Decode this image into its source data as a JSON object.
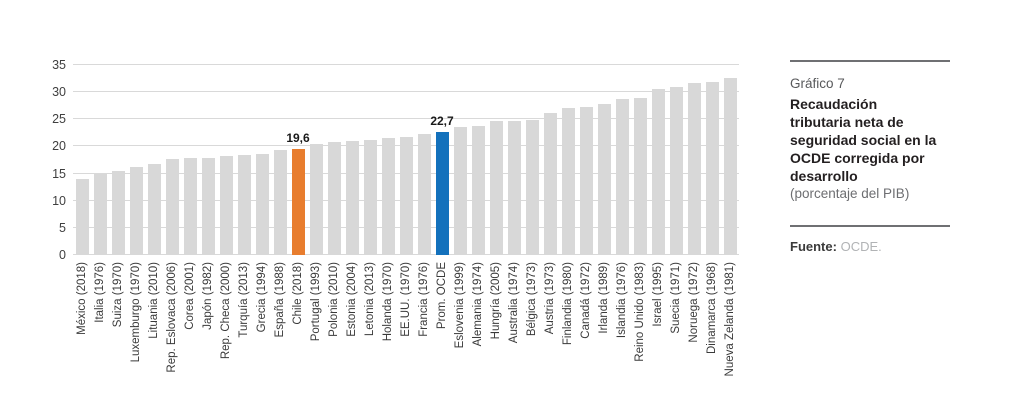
{
  "panel": {
    "kicker": "Gráfico 7",
    "title": "Recaudación\ntributaria neta de\nseguridad social en la\nOCDE corregida por\ndesarrollo",
    "subtitle": "(porcentaje del PIB)",
    "source_label": "Fuente:",
    "source_value": "OCDE."
  },
  "chart_data": {
    "type": "bar",
    "title": "Recaudación tributaria neta de seguridad social en la OCDE corregida por desarrollo",
    "xlabel": "",
    "ylabel": "porcentaje del PIB",
    "ylim": [
      0,
      35
    ],
    "yticks": [
      0,
      5,
      10,
      15,
      20,
      25,
      30,
      35
    ],
    "grid": true,
    "legend_position": "none",
    "bar_color_default": "#D8D8D8",
    "axis_text_color": "#3a3a3a",
    "gridline_color": "#d9d9d9",
    "categories": [
      "México (2018)",
      "Italia (1976)",
      "Suiza (1970)",
      "Luxemburgo (1970)",
      "Lituania (2010)",
      "Rep. Eslovaca (2006)",
      "Corea (2001)",
      "Japón (1982)",
      "Rep. Checa (2000)",
      "Turquía (2013)",
      "Grecia (1994)",
      "España (1988)",
      "Chile (2018)",
      "Portugal (1993)",
      "Polonia (2010)",
      "Estonia (2004)",
      "Letonia (2013)",
      "Holanda (1970)",
      "EE.UU. (1970)",
      "Francia (1976)",
      "Prom. OCDE",
      "Eslovenia (1999)",
      "Alemania (1974)",
      "Hungría (2005)",
      "Australia (1974)",
      "Bélgica (1973)",
      "Austria (1973)",
      "Finlandia (1980)",
      "Canadá (1972)",
      "Irlanda (1989)",
      "Islandia (1976)",
      "Reino Unido (1983)",
      "Israel (1995)",
      "Suecia (1971)",
      "Noruega (1972)",
      "Dinamarca (1968)",
      "Nueva Zelanda (1981)"
    ],
    "values": [
      14.0,
      14.9,
      15.4,
      16.2,
      16.8,
      17.7,
      17.8,
      17.9,
      18.2,
      18.5,
      18.7,
      19.3,
      19.6,
      20.5,
      20.8,
      21.0,
      21.2,
      21.5,
      21.8,
      22.3,
      22.7,
      23.6,
      23.8,
      24.6,
      24.7,
      24.8,
      26.1,
      27.0,
      27.2,
      27.9,
      28.7,
      28.9,
      30.6,
      31.0,
      31.6,
      31.9,
      32.7
    ],
    "highlights": [
      {
        "index": 12,
        "category": "Chile (2018)",
        "color": "#E87D2E",
        "data_label": "19,6"
      },
      {
        "index": 20,
        "category": "Prom. OCDE",
        "color": "#1371BC",
        "data_label": "22,7"
      }
    ]
  }
}
